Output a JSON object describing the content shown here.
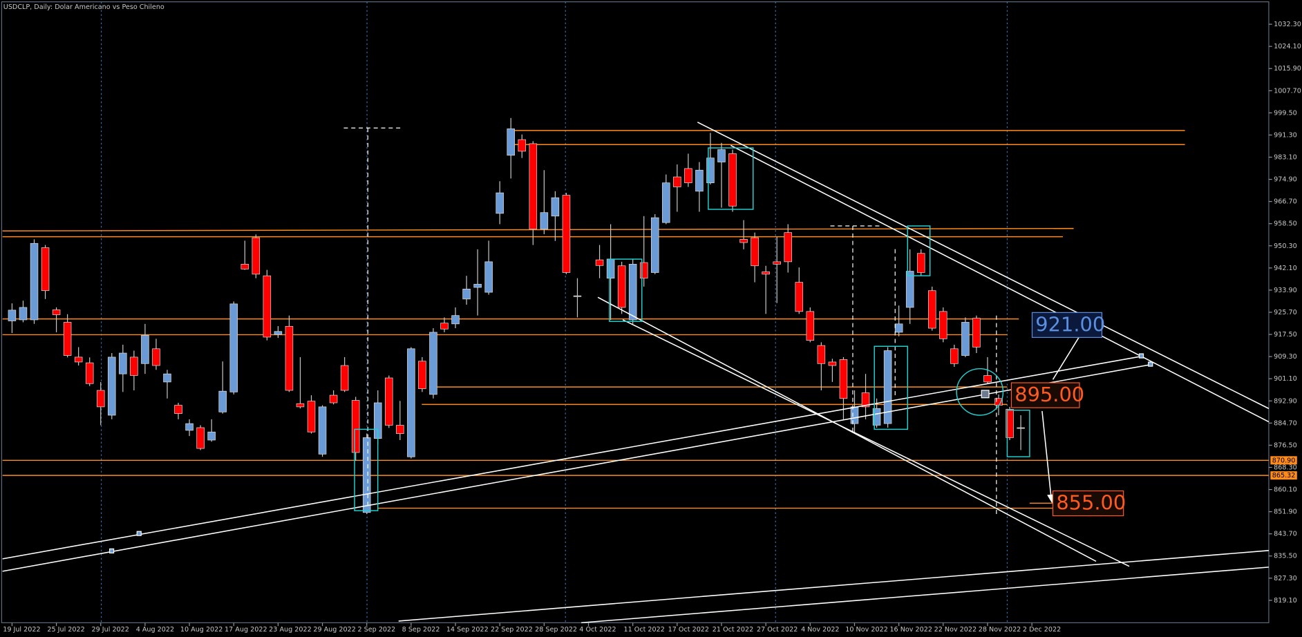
{
  "chart_data": {
    "type": "candlestick",
    "title": "USDCLP, Daily:  Dolar Americano vs Peso Chileno",
    "up_color": "#6a9bd6",
    "down_color": "#ff0000",
    "wick_color": "#c8c8c8",
    "categories": [
      "19 Jul 2022",
      null,
      null,
      null,
      "25 Jul 2022",
      null,
      null,
      null,
      "29 Jul 2022",
      null,
      null,
      null,
      "4 Aug 2022",
      null,
      null,
      null,
      "10 Aug 2022",
      null,
      null,
      null,
      "17 Aug 2022",
      null,
      null,
      null,
      "23 Aug 2022",
      null,
      null,
      null,
      "29 Aug 2022",
      null,
      null,
      null,
      "2 Sep 2022",
      null,
      null,
      null,
      "8 Sep 2022",
      null,
      null,
      null,
      "14 Sep 2022",
      null,
      null,
      null,
      "22 Sep 2022",
      null,
      null,
      null,
      "28 Sep 2022",
      null,
      null,
      null,
      "4 Oct 2022",
      null,
      null,
      null,
      "11 Oct 2022",
      null,
      null,
      null,
      "17 Oct 2022",
      null,
      null,
      null,
      "21 Oct 2022",
      null,
      null,
      null,
      "27 Oct 2022",
      null,
      null,
      null,
      "4 Nov 2022",
      null,
      null,
      null,
      "10 Nov 2022",
      null,
      null,
      null,
      "16 Nov 2022",
      null,
      null,
      null,
      "22 Nov 2022",
      null,
      null,
      null,
      "28 Nov 2022",
      null,
      null,
      null,
      "2 Dec 2022"
    ],
    "open": [
      922.5,
      922.9,
      922.9,
      949.6,
      926.6,
      922,
      909.1,
      907,
      896.8,
      887.6,
      902.9,
      909.1,
      906.7,
      912.2,
      899.9,
      891.3,
      882,
      883,
      878.4,
      888.8,
      896.2,
      943.5,
      953.3,
      939.2,
      917.5,
      920.5,
      891.9,
      892.8,
      873.2,
      895,
      906,
      893.1,
      851.6,
      879,
      901.4,
      883.9,
      872.2,
      907.6,
      895.3,
      921.7,
      921.4,
      930.6,
      934.9,
      933.1,
      962.3,
      983.8,
      989.6,
      988.1,
      956.5,
      961.3,
      969,
      931.8,
      null,
      945.1,
      938.3,
      942.9,
      922.9,
      944.1,
      940.4,
      958.9,
      975.8,
      978.9,
      970.5,
      973.6,
      981.3,
      984.4,
      952.7,
      953.3,
      940.7,
      944.4,
      955.2,
      936.8,
      926,
      913.4,
      907.3,
      908.2,
      884.5,
      895.9,
      883.9,
      884.5,
      918.3,
      927.5,
      947.5,
      933.7,
      926,
      912.2,
      909.7,
      923.5,
      902.3,
      893.8,
      889.8,
      883,
      null
    ],
    "high": [
      929,
      930,
      952.7,
      950.6,
      927.5,
      925,
      912.8,
      909,
      899.9,
      910.6,
      913.7,
      911.5,
      921.4,
      915.9,
      904.4,
      892.2,
      886.1,
      883.9,
      886.1,
      907.5,
      929.7,
      952.2,
      954.5,
      941.4,
      920.6,
      924.5,
      909.1,
      895,
      891.3,
      896.8,
      909.1,
      894.4,
      880.8,
      896.8,
      902.3,
      892.9,
      912.8,
      909.1,
      919.8,
      923.8,
      927.5,
      939.2,
      949,
      952.2,
      974.2,
      997.6,
      991.5,
      989,
      978.3,
      970.5,
      969.9,
      938.3,
      null,
      950.6,
      958.3,
      944.4,
      945.4,
      961.3,
      962,
      976.7,
      980.4,
      984.4,
      981.3,
      992.1,
      988.4,
      985.9,
      959.8,
      955.2,
      942.9,
      953.6,
      958.3,
      942.3,
      927.5,
      914.6,
      908.5,
      909.1,
      896.8,
      902.9,
      893.8,
      912.8,
      928.2,
      949,
      949,
      935.2,
      927.5,
      913.7,
      923.8,
      924.5,
      909.1,
      895.3,
      890.7,
      887.6,
      null
    ],
    "low": [
      918,
      922,
      921.4,
      930.6,
      918.3,
      909,
      906,
      898.4,
      883.9,
      886.1,
      896.2,
      896.8,
      902.9,
      904.4,
      893.8,
      886.1,
      879.9,
      874.7,
      877.8,
      888.2,
      895.3,
      941.4,
      938.3,
      915.3,
      916.2,
      896.2,
      890.1,
      880.8,
      872.2,
      891.6,
      896.2,
      870.7,
      851,
      876.8,
      882.9,
      878.4,
      871.6,
      896.2,
      893.8,
      918.3,
      919.8,
      928.5,
      924.5,
      932.2,
      958.3,
      975.2,
      982.8,
      950.6,
      954.6,
      952.1,
      939.8,
      923.8,
      null,
      938.3,
      922.9,
      925.1,
      921.4,
      935.2,
      939.8,
      958.3,
      962.9,
      972.1,
      962.9,
      973,
      964.4,
      962.9,
      949,
      936.8,
      925.1,
      929.1,
      940.4,
      925.1,
      914.6,
      896.8,
      899.9,
      886.1,
      880.8,
      886.1,
      883,
      883,
      916.8,
      921.4,
      939.2,
      918.9,
      914.6,
      905.5,
      909.1,
      910.6,
      899.3,
      887.6,
      878.4,
      874.7,
      null
    ],
    "close": [
      926.5,
      927.5,
      951.2,
      933.7,
      924.8,
      909.7,
      907.3,
      899.3,
      890.7,
      909.1,
      910.6,
      902.3,
      917.2,
      906,
      902.9,
      888.2,
      884.5,
      875.3,
      881.4,
      896.5,
      928.8,
      941.7,
      939.8,
      916.5,
      918.6,
      896.8,
      890.7,
      881.4,
      890.7,
      892.2,
      896.8,
      873.8,
      879.3,
      892.2,
      883.9,
      880.8,
      912.2,
      897.4,
      918.3,
      919.5,
      924.5,
      934.3,
      936.1,
      944.4,
      969.9,
      993.6,
      985.3,
      956.5,
      962.6,
      968.1,
      940.4,
      931.8,
      null,
      943,
      945.4,
      927.5,
      943.5,
      938.3,
      960.7,
      973.6,
      972.1,
      973.6,
      978.3,
      982.8,
      985.9,
      965,
      951.5,
      942.9,
      939.8,
      943.5,
      944.4,
      926,
      915.3,
      906.7,
      906,
      893.8,
      890.7,
      890.7,
      890.1,
      911.5,
      921.4,
      940.9,
      940.4,
      919.8,
      915.9,
      906.7,
      922,
      912.8,
      899.9,
      891.3,
      879.3,
      883,
      null
    ],
    "ylim": [
      810.8,
      1040.6
    ],
    "yticks": [
      {
        "value": 1032.3,
        "label": "1032.30"
      },
      {
        "value": 1024.1,
        "label": "1024.10"
      },
      {
        "value": 1015.9,
        "label": "1015.90"
      },
      {
        "value": 1007.7,
        "label": "1007.70"
      },
      {
        "value": 999.5,
        "label": "999.50"
      },
      {
        "value": 991.3,
        "label": "991.30"
      },
      {
        "value": 983.1,
        "label": "983.10"
      },
      {
        "value": 974.9,
        "label": "974.90"
      },
      {
        "value": 966.7,
        "label": "966.70"
      },
      {
        "value": 958.5,
        "label": "958.50"
      },
      {
        "value": 950.3,
        "label": "950.30"
      },
      {
        "value": 942.1,
        "label": "942.10"
      },
      {
        "value": 933.9,
        "label": "933.90"
      },
      {
        "value": 925.7,
        "label": "925.70"
      },
      {
        "value": 917.5,
        "label": "917.50"
      },
      {
        "value": 909.3,
        "label": "909.30"
      },
      {
        "value": 901.1,
        "label": "901.10"
      },
      {
        "value": 892.9,
        "label": "892.90"
      },
      {
        "value": 884.7,
        "label": "884.70"
      },
      {
        "value": 876.5,
        "label": "876.50"
      },
      {
        "value": 868.3,
        "label": "868.30"
      },
      {
        "value": 860.1,
        "label": "860.10"
      },
      {
        "value": 851.9,
        "label": "851.90"
      },
      {
        "value": 843.7,
        "label": "843.70"
      },
      {
        "value": 835.5,
        "label": "835.50"
      },
      {
        "value": 827.3,
        "label": "827.30"
      },
      {
        "value": 819.1,
        "label": "819.10"
      }
    ],
    "price_markers": [
      {
        "value": 870.9,
        "label": "870.90",
        "color": "#ff8c1a"
      },
      {
        "value": 865.32,
        "label": "865.32",
        "color": "#ff8c1a"
      }
    ],
    "annotations": [
      {
        "value": 921,
        "label": "921.00",
        "color": "#5b8fe0"
      },
      {
        "value": 895,
        "label": "895.00",
        "color": "#ff5a1f"
      },
      {
        "value": 855,
        "label": "855.00",
        "color": "#ff5a1f"
      }
    ]
  }
}
